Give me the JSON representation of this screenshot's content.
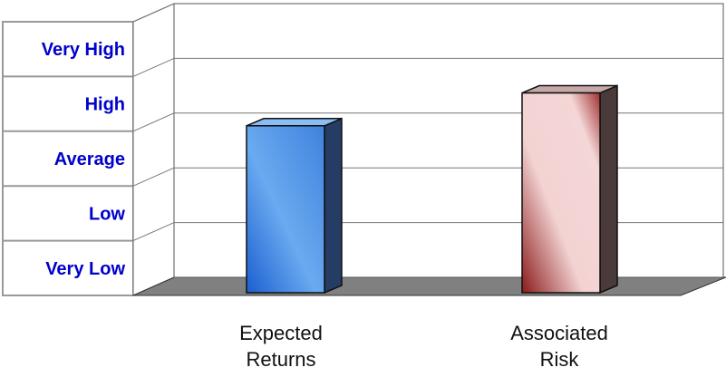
{
  "chart_data": {
    "type": "bar",
    "categories": [
      "Expected Returns",
      "Associated Risk"
    ],
    "category_lines": [
      [
        "Expected",
        "Returns"
      ],
      [
        "Associated",
        "Risk"
      ]
    ],
    "levels": [
      "Very Low",
      "Low",
      "Average",
      "High",
      "Very High"
    ],
    "values": [
      3.0,
      3.6
    ],
    "ylim": [
      0,
      5
    ],
    "grid": true,
    "colors": {
      "level_text": "#0000cc",
      "expected_returns": "#5aa0ea",
      "associated_risk": "#f0cccc",
      "floor": "#808080"
    }
  }
}
